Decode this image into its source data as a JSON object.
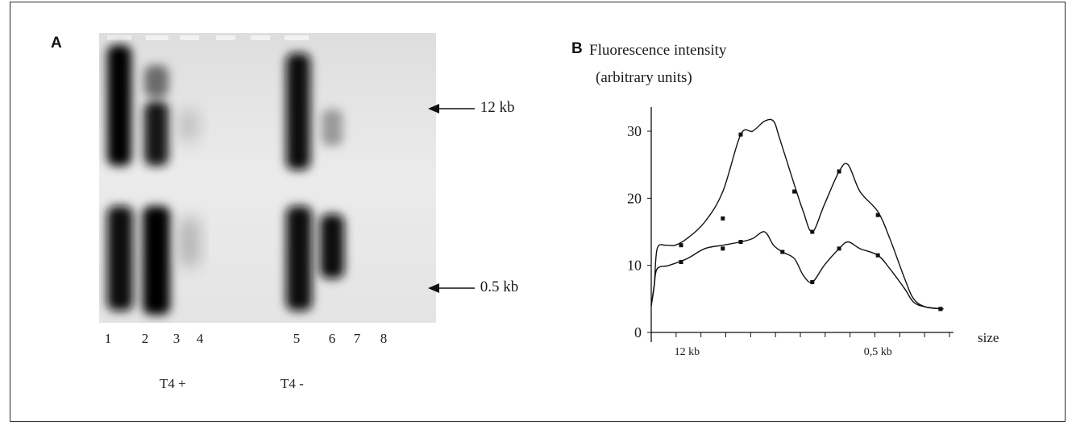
{
  "panel_a": {
    "letter": "A",
    "markers": {
      "upper": "12 kb",
      "lower": "0.5 kb"
    },
    "lanes": [
      "1",
      "2",
      "3",
      "4",
      "5",
      "6",
      "7",
      "8"
    ],
    "groups": [
      "T4 +",
      "T4 -"
    ]
  },
  "panel_b": {
    "letter": "B",
    "title_line1": "Fluorescence intensity",
    "title_line2": "(arbitrary units)"
  },
  "chart_data": {
    "type": "line",
    "title": "Fluorescence intensity (arbitrary units)",
    "xlabel": "size",
    "ylabel": "",
    "y_ticks": [
      "0",
      "10",
      "20",
      "30"
    ],
    "x_ticks": [
      "12 kb",
      "0,5 kb"
    ],
    "ylim": [
      0,
      33
    ],
    "xlim": [
      0,
      100
    ],
    "series": [
      {
        "values": [
          [
            0,
            4
          ],
          [
            1,
            7
          ],
          [
            2,
            12.5
          ],
          [
            5,
            13
          ],
          [
            8,
            13
          ],
          [
            12,
            14
          ],
          [
            18,
            16.5
          ],
          [
            24,
            21
          ],
          [
            30,
            29.5
          ],
          [
            34,
            30
          ],
          [
            38,
            31.5
          ],
          [
            41,
            31.5
          ],
          [
            43,
            29
          ],
          [
            48,
            22
          ],
          [
            51,
            18
          ],
          [
            54,
            15
          ],
          [
            58,
            19
          ],
          [
            63,
            24
          ],
          [
            66,
            25
          ],
          [
            70,
            21
          ],
          [
            76,
            18
          ],
          [
            80,
            14
          ],
          [
            85,
            8
          ],
          [
            88,
            5
          ],
          [
            92,
            3.8
          ],
          [
            98,
            3.5
          ]
        ]
      },
      {
        "values": [
          [
            0,
            4
          ],
          [
            1,
            7
          ],
          [
            2,
            9.5
          ],
          [
            6,
            10
          ],
          [
            12,
            11
          ],
          [
            18,
            12.5
          ],
          [
            24,
            13
          ],
          [
            30,
            13.5
          ],
          [
            34,
            14
          ],
          [
            38,
            15
          ],
          [
            41,
            13
          ],
          [
            44,
            12
          ],
          [
            48,
            11
          ],
          [
            51,
            8.5
          ],
          [
            54,
            7.5
          ],
          [
            58,
            10
          ],
          [
            63,
            12.5
          ],
          [
            66,
            13.5
          ],
          [
            70,
            12.5
          ],
          [
            76,
            11.5
          ],
          [
            80,
            9.5
          ],
          [
            85,
            6.5
          ],
          [
            88,
            4.5
          ],
          [
            92,
            3.8
          ],
          [
            98,
            3.5
          ]
        ]
      }
    ],
    "markers_at": [
      [
        [
          10,
          13
        ],
        [
          24,
          17
        ],
        [
          30,
          29.5
        ],
        [
          48,
          21
        ],
        [
          54,
          15
        ],
        [
          63,
          24
        ],
        [
          76,
          17.5
        ],
        [
          97,
          3.5
        ]
      ],
      [
        [
          10,
          10.5
        ],
        [
          24,
          12.5
        ],
        [
          30,
          13.5
        ],
        [
          44,
          12
        ],
        [
          54,
          7.5
        ],
        [
          63,
          12.5
        ],
        [
          76,
          11.5
        ],
        [
          97,
          3.5
        ]
      ]
    ]
  }
}
